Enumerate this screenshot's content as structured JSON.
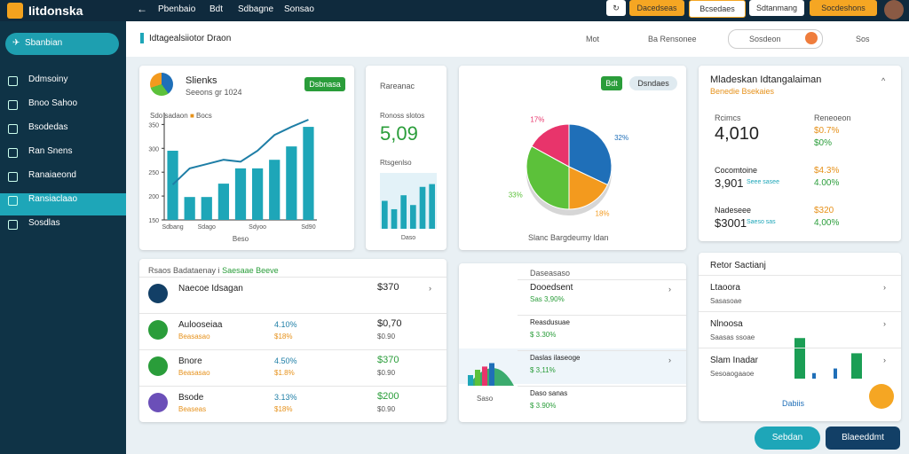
{
  "topbar": {
    "logo": "Iitdonska",
    "nav": [
      "Pbenbaio",
      "Bdt",
      "Sdbagne",
      "Sonsao"
    ],
    "buttons": [
      "Dacedseas",
      "Bcsedaes",
      "Sdtanmang",
      "Socdeshons"
    ]
  },
  "sidebar": {
    "primary": "Sbanbian",
    "items": [
      "Ddmsoiny",
      "Bnoo Sahoo",
      "Bsodedas",
      "Ran Snens",
      "Ranaiaeond",
      "Ransiaclaao",
      "Sosdlas"
    ]
  },
  "header": {
    "title": "Idtagealsiiotor Draon",
    "links": [
      "Mot",
      "Ba Rensonee"
    ],
    "search": "Sosdeon",
    "user": "Sos"
  },
  "sales": {
    "title": "Slienks",
    "subtitle": "Seeons gr 1024",
    "button": "Dsbnasa",
    "legend": [
      "Sdo sadaon",
      "Bocs"
    ],
    "chart_data": {
      "type": "bar",
      "xlabel": "Beso",
      "categories": [
        "Sdbang",
        null,
        "Sdago",
        null,
        null,
        "Sdyoo",
        null,
        null,
        "Sd90"
      ],
      "series": [
        {
          "name": "Sdo sadaon",
          "color": "#1ea6b8",
          "values": [
            295,
            198,
            198,
            226,
            258,
            258,
            276,
            304,
            345
          ]
        },
        {
          "name": "Bocs",
          "color": "#1e7ea6",
          "type": "line",
          "values": [
            224,
            258,
            267,
            276,
            272,
            295,
            328,
            345,
            360
          ]
        }
      ],
      "ylim": [
        150,
        360
      ],
      "yticks": [
        150,
        200,
        250,
        300,
        350
      ]
    }
  },
  "revenue": {
    "title": "Rareanac",
    "label": "Ronoss slotos",
    "value": "5,09",
    "sublabel": "Rtsgenlso",
    "chart_data": {
      "type": "bar",
      "xlabel": "Daso",
      "values": [
        20,
        14,
        24,
        17,
        30,
        32
      ],
      "color": "#1ea6b8",
      "ylim": [
        0,
        40
      ]
    }
  },
  "share": {
    "buttons": [
      "Bdt",
      "Dsndaes"
    ],
    "caption": "Slanc Bargdeumy ldan",
    "chart_data": {
      "type": "pie",
      "values": [
        32,
        18,
        33,
        17
      ],
      "value_labels": [
        "32%",
        "18%",
        "33%",
        "17%"
      ],
      "colors": [
        "#1f6fb8",
        "#f39a1e",
        "#5cc13a",
        "#e8346b"
      ]
    }
  },
  "metrics": {
    "title": "Mladeskan Idtangalaiman",
    "subtitle": "Benedie Bsekaies",
    "columns": [
      "Rcimcs",
      "Reneoeon"
    ],
    "rows": [
      {
        "name": "",
        "value": "4,010",
        "sub": "",
        "right": "$0.7%",
        "right2": "$0%"
      },
      {
        "name": "Cocomtoine",
        "value": "3,901",
        "sub": "Seee sasee",
        "right": "$4.3%",
        "right2": "4.00%"
      },
      {
        "name": "Nadeseee",
        "value": "$3001",
        "sub": "Saeso sas",
        "right": "$320",
        "right2": "4,00%"
      }
    ]
  },
  "list": {
    "title": "Rsaos Badataenay i",
    "tag": "Saesaae Beeve",
    "rows": [
      {
        "name": "Naecoe Idsagan",
        "pct": "",
        "pct2": "",
        "value": "$370",
        "sub": ""
      },
      {
        "name": "Aulooseiaa",
        "sub1": "Beasasao",
        "pct": "4.10%",
        "pct2": "$18%",
        "value": "$0,70",
        "sub": "$0.90"
      },
      {
        "name": "Bnore",
        "sub1": "Beasasao",
        "pct": "4.50%",
        "pct2": "$1.8%",
        "value": "$370",
        "sub": "$0.90"
      },
      {
        "name": "Bsode",
        "sub1": "Beaseas",
        "pct": "3.13%",
        "pct2": "$18%",
        "value": "$200",
        "sub": "$0.90"
      }
    ]
  },
  "activity": {
    "title": "Daseasaso",
    "axis": "Saso",
    "rows": [
      {
        "name": "Dooedsent",
        "sub": "Sas 3,90%"
      },
      {
        "name": "Reasdusuae",
        "sub": "$ 3.30%"
      },
      {
        "name": "Daslas ilaseoge",
        "sub": "$ 3,11%"
      },
      {
        "name": "Daso sanas",
        "sub": "$ 3.90%"
      }
    ],
    "chart_data": {
      "type": "bar",
      "values": [
        40,
        60,
        72,
        85
      ],
      "colors": [
        "#1ea6b8",
        "#5cc13a",
        "#e8346b",
        "#1f6fb8"
      ],
      "ylim": [
        0,
        100
      ]
    }
  },
  "sector": {
    "title": "Retor Sactianj",
    "rows": [
      {
        "name": "Ltaoora",
        "sub": "Sasasoae"
      },
      {
        "name": "Nlnoosa",
        "sub": "Saasas ssoae"
      },
      {
        "name": "Slam Inadar",
        "sub": "Sesoaogaaoe"
      }
    ],
    "button": "Dabiis",
    "chart_data": {
      "type": "bar",
      "values": [
        88,
        12,
        22,
        55
      ],
      "colors": [
        "#1b9e55",
        "#1f6fb8",
        "#1f6fb8",
        "#1b9e55"
      ],
      "ylim": [
        0,
        100
      ]
    }
  },
  "footer": {
    "buttons": [
      "Sebdan",
      "Blaeeddmt"
    ]
  }
}
